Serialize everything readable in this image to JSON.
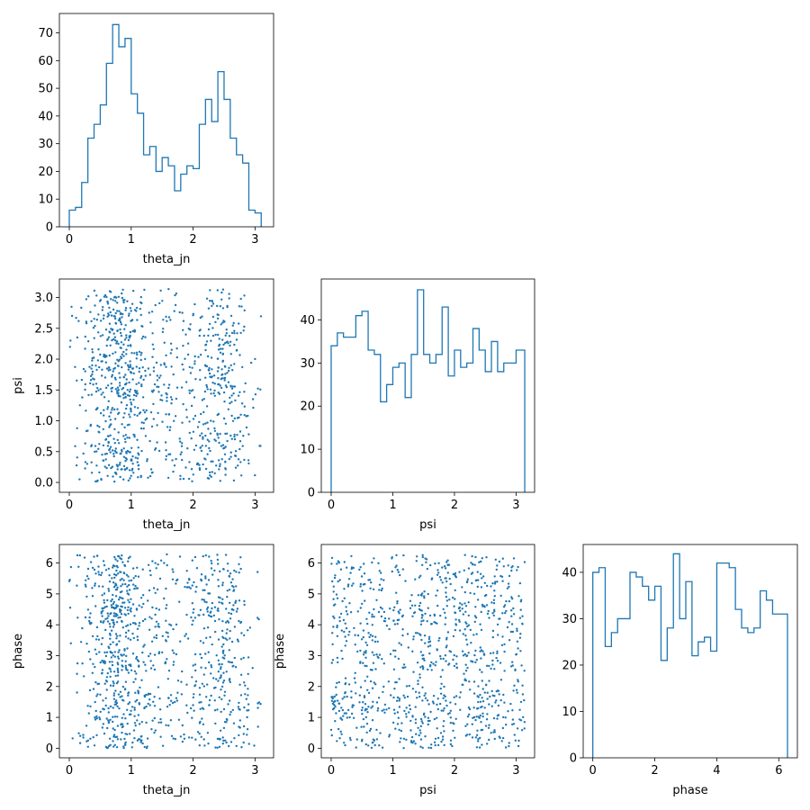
{
  "figure": {
    "type": "corner-plot",
    "parameters": [
      "theta_jn",
      "psi",
      "phase"
    ]
  },
  "colors": {
    "series": "#1f77b4",
    "frame": "#000000",
    "background": "#ffffff"
  },
  "chart_data": [
    {
      "id": "hist_theta_jn",
      "type": "histogram",
      "xlabel": "theta_jn",
      "ylabel": "",
      "xlim": [
        -0.16,
        3.3
      ],
      "ylim": [
        0,
        77
      ],
      "xticks": [
        0,
        1,
        2,
        3
      ],
      "yticks": [
        0,
        10,
        20,
        30,
        40,
        50,
        60,
        70
      ],
      "bin_edges": [
        0,
        0.1,
        0.2,
        0.3,
        0.4,
        0.5,
        0.6,
        0.7,
        0.8,
        0.9,
        1.0,
        1.1,
        1.2,
        1.3,
        1.4,
        1.5,
        1.6,
        1.7,
        1.8,
        1.9,
        2.0,
        2.1,
        2.2,
        2.3,
        2.4,
        2.5,
        2.6,
        2.7,
        2.8,
        2.9,
        3.0,
        3.1
      ],
      "counts": [
        6,
        7,
        16,
        32,
        37,
        44,
        59,
        73,
        65,
        68,
        48,
        41,
        26,
        29,
        20,
        25,
        22,
        13,
        19,
        22,
        21,
        37,
        46,
        38,
        56,
        46,
        32,
        26,
        23,
        6,
        5
      ]
    },
    {
      "id": "hist_psi",
      "type": "histogram",
      "xlabel": "psi",
      "ylabel": "",
      "xlim": [
        -0.16,
        3.3
      ],
      "ylim": [
        0,
        49.5
      ],
      "xticks": [
        0,
        1,
        2,
        3
      ],
      "yticks": [
        0,
        10,
        20,
        30,
        40
      ],
      "bin_edges": [
        0,
        0.1,
        0.2,
        0.3,
        0.4,
        0.5,
        0.6,
        0.7,
        0.8,
        0.9,
        1.0,
        1.1,
        1.2,
        1.3,
        1.4,
        1.5,
        1.6,
        1.7,
        1.8,
        1.9,
        2.0,
        2.1,
        2.2,
        2.3,
        2.4,
        2.5,
        2.6,
        2.7,
        2.8,
        2.9,
        3.0,
        3.14
      ],
      "counts": [
        34,
        37,
        36,
        36,
        41,
        42,
        33,
        32,
        21,
        25,
        29,
        30,
        22,
        32,
        47,
        32,
        30,
        32,
        43,
        27,
        33,
        29,
        30,
        38,
        33,
        28,
        35,
        28,
        30,
        30,
        33
      ]
    },
    {
      "id": "hist_phase",
      "type": "histogram",
      "xlabel": "phase",
      "ylabel": "",
      "xlim": [
        -0.31,
        6.6
      ],
      "ylim": [
        0,
        46
      ],
      "xticks": [
        0,
        2,
        4,
        6
      ],
      "yticks": [
        0,
        10,
        20,
        30,
        40
      ],
      "bin_edges": [
        0,
        0.2,
        0.4,
        0.6,
        0.8,
        1.0,
        1.2,
        1.4,
        1.6,
        1.8,
        2.0,
        2.2,
        2.4,
        2.6,
        2.8,
        3.0,
        3.2,
        3.4,
        3.6,
        3.8,
        4.0,
        4.2,
        4.4,
        4.6,
        4.8,
        5.0,
        5.2,
        5.4,
        5.6,
        5.8,
        6.0,
        6.28
      ],
      "counts": [
        40,
        41,
        24,
        27,
        30,
        30,
        40,
        39,
        37,
        34,
        37,
        21,
        28,
        44,
        30,
        38,
        22,
        25,
        26,
        23,
        42,
        42,
        41,
        32,
        28,
        27,
        28,
        36,
        34,
        31,
        31
      ]
    },
    {
      "id": "scatter_theta_jn_psi",
      "type": "scatter",
      "xlabel": "theta_jn",
      "ylabel": "psi",
      "xlim": [
        -0.16,
        3.3
      ],
      "ylim": [
        -0.16,
        3.3
      ],
      "xticks": [
        0,
        1,
        2,
        3
      ],
      "yticks": [
        0.0,
        0.5,
        1.0,
        1.5,
        2.0,
        2.5,
        3.0
      ],
      "ytick_labels": [
        "0.0",
        "0.5",
        "1.0",
        "1.5",
        "2.0",
        "2.5",
        "3.0"
      ],
      "note": "approximately 1000 samples; x follows the bimodal theta_jn distribution, y approximately uniform on [0, 3.14]"
    },
    {
      "id": "scatter_theta_jn_phase",
      "type": "scatter",
      "xlabel": "theta_jn",
      "ylabel": "phase",
      "xlim": [
        -0.16,
        3.3
      ],
      "ylim": [
        -0.31,
        6.6
      ],
      "xticks": [
        0,
        1,
        2,
        3
      ],
      "yticks": [
        0,
        1,
        2,
        3,
        4,
        5,
        6
      ],
      "note": "approximately 1000 samples; x follows the bimodal theta_jn distribution, y approximately uniform on [0, 6.28]"
    },
    {
      "id": "scatter_psi_phase",
      "type": "scatter",
      "xlabel": "psi",
      "ylabel": "phase",
      "xlim": [
        -0.16,
        3.3
      ],
      "ylim": [
        -0.31,
        6.6
      ],
      "xticks": [
        0,
        1,
        2,
        3
      ],
      "yticks": [
        0,
        1,
        2,
        3,
        4,
        5,
        6
      ],
      "note": "approximately 1000 samples; both coordinates approximately uniform"
    }
  ]
}
